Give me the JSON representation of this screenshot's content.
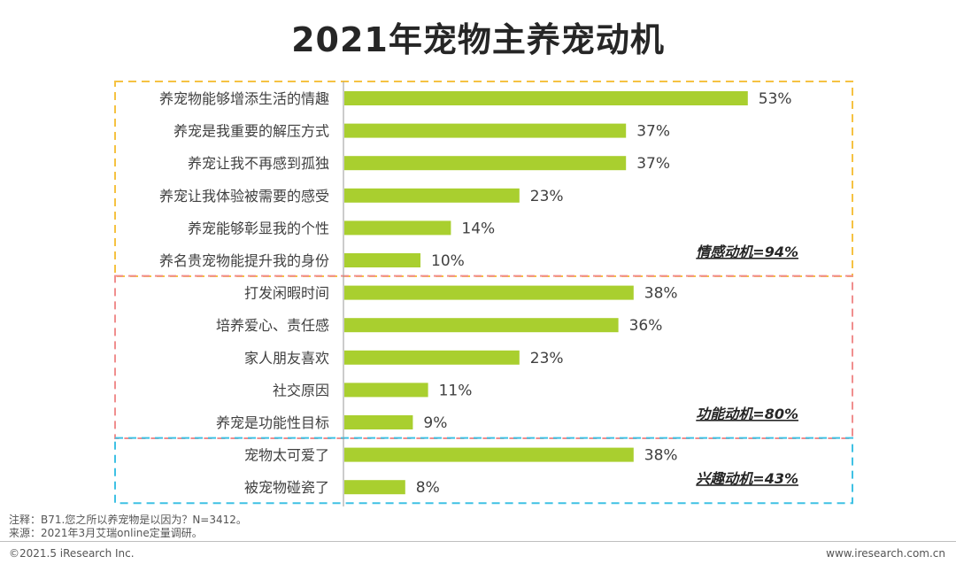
{
  "title": "2021年宠物主养宠动机",
  "colors": {
    "bar": "#a9cf2f",
    "group_emotion": "#f5c242",
    "group_function": "#f08e8e",
    "group_interest": "#3fc1e4"
  },
  "chart_data": {
    "type": "bar",
    "orientation": "horizontal",
    "title": "2021年宠物主养宠动机",
    "xlim": [
      0,
      60
    ],
    "unit": "%",
    "categories": [
      "养宠物能够增添生活的情趣",
      "养宠是我重要的解压方式",
      "养宠让我不再感到孤独",
      "养宠让我体验被需要的感受",
      "养宠能够彰显我的个性",
      "养名贵宠物能提升我的身份",
      "打发闲暇时间",
      "培养爱心、责任感",
      "家人朋友喜欢",
      "社交原因",
      "养宠是功能性目标",
      "宠物太可爱了",
      "被宠物碰瓷了"
    ],
    "values": [
      53,
      37,
      37,
      23,
      14,
      10,
      38,
      36,
      23,
      11,
      9,
      38,
      8
    ],
    "value_labels": [
      "53%",
      "37%",
      "37%",
      "23%",
      "14%",
      "10%",
      "38%",
      "36%",
      "23%",
      "11%",
      "9%",
      "38%",
      "8%"
    ],
    "groups": [
      {
        "label": "情感动机=94%",
        "start": 0,
        "end": 5,
        "color": "#f5c242"
      },
      {
        "label": "功能动机=80%",
        "start": 6,
        "end": 10,
        "color": "#f08e8e"
      },
      {
        "label": "兴趣动机=43%",
        "start": 11,
        "end": 12,
        "color": "#3fc1e4"
      }
    ]
  },
  "footnotes": {
    "note": "注释：B71.您之所以养宠物是以因为？N=3412。",
    "source": "来源：2021年3月艾瑞online定量调研。"
  },
  "footer": {
    "copyright": "©2021.5 iResearch Inc.",
    "website": "www.iresearch.com.cn"
  }
}
